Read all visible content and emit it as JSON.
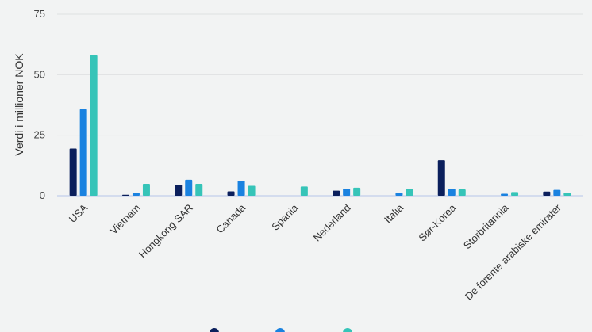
{
  "chart_data": {
    "type": "bar",
    "ylabel": "Verdi i millioner NOK",
    "ylim": [
      0,
      75
    ],
    "yticks": [
      0,
      25,
      50,
      75
    ],
    "grid": true,
    "legend_position": "bottom",
    "categories": [
      "USA",
      "Vietnam",
      "Hongkong SAR",
      "Canada",
      "Spania",
      "Nederland",
      "Italia",
      "Sør-Korea",
      "Storbritannia",
      "De forente arabiske emirater"
    ],
    "series": [
      {
        "name": "",
        "color": "#0b1f5c",
        "values": [
          19.5,
          0.4,
          4.5,
          1.8,
          0,
          2.1,
          0,
          14.7,
          0,
          1.7
        ]
      },
      {
        "name": "",
        "color": "#1a82e0",
        "values": [
          35.8,
          1.2,
          6.6,
          6.2,
          0,
          2.9,
          1.2,
          2.8,
          0.8,
          2.4
        ]
      },
      {
        "name": "",
        "color": "#36c4b8",
        "values": [
          58,
          4.9,
          4.9,
          4.1,
          3.8,
          3.3,
          2.8,
          2.6,
          1.5,
          1.3
        ]
      }
    ]
  }
}
